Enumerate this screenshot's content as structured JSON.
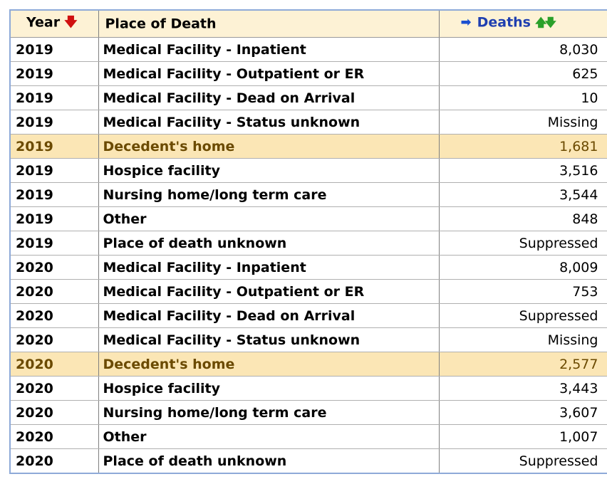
{
  "header": {
    "year": "Year",
    "place": "Place of Death",
    "deaths": "Deaths",
    "year_sort_icon": "red-down-arrow-icon",
    "deaths_active_icon": "blue-right-arrow-icon",
    "deaths_sort_icons": "green-up-down-arrows-icon"
  },
  "colors": {
    "highlight": "#fbe6b5",
    "header_bg": "#fdf2d5",
    "deaths_header": "#1f3fb0"
  },
  "rows": [
    {
      "year": "2019",
      "place": "Medical Facility - Inpatient",
      "deaths": "8,030",
      "highlight": false
    },
    {
      "year": "2019",
      "place": "Medical Facility - Outpatient or ER",
      "deaths": "625",
      "highlight": false
    },
    {
      "year": "2019",
      "place": "Medical Facility - Dead on Arrival",
      "deaths": "10",
      "highlight": false
    },
    {
      "year": "2019",
      "place": "Medical Facility - Status unknown",
      "deaths": "Missing",
      "highlight": false
    },
    {
      "year": "2019",
      "place": "Decedent's home",
      "deaths": "1,681",
      "highlight": true
    },
    {
      "year": "2019",
      "place": "Hospice facility",
      "deaths": "3,516",
      "highlight": false
    },
    {
      "year": "2019",
      "place": "Nursing home/long term care",
      "deaths": "3,544",
      "highlight": false
    },
    {
      "year": "2019",
      "place": "Other",
      "deaths": "848",
      "highlight": false
    },
    {
      "year": "2019",
      "place": "Place of death unknown",
      "deaths": "Suppressed",
      "highlight": false
    },
    {
      "year": "2020",
      "place": "Medical Facility - Inpatient",
      "deaths": "8,009",
      "highlight": false
    },
    {
      "year": "2020",
      "place": "Medical Facility - Outpatient or ER",
      "deaths": "753",
      "highlight": false
    },
    {
      "year": "2020",
      "place": "Medical Facility - Dead on Arrival",
      "deaths": "Suppressed",
      "highlight": false
    },
    {
      "year": "2020",
      "place": "Medical Facility - Status unknown",
      "deaths": "Missing",
      "highlight": false
    },
    {
      "year": "2020",
      "place": "Decedent's home",
      "deaths": "2,577",
      "highlight": true
    },
    {
      "year": "2020",
      "place": "Hospice facility",
      "deaths": "3,443",
      "highlight": false
    },
    {
      "year": "2020",
      "place": "Nursing home/long term care",
      "deaths": "3,607",
      "highlight": false
    },
    {
      "year": "2020",
      "place": "Other",
      "deaths": "1,007",
      "highlight": false
    },
    {
      "year": "2020",
      "place": "Place of death unknown",
      "deaths": "Suppressed",
      "highlight": false
    }
  ]
}
